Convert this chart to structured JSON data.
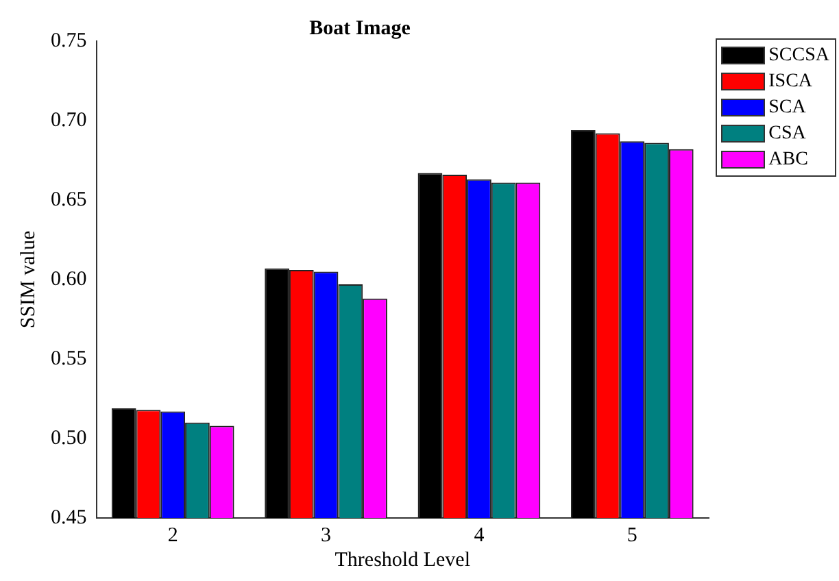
{
  "chart_data": {
    "type": "bar",
    "title": "Boat Image",
    "xlabel": "Threshold Level",
    "ylabel": "SSIM value",
    "categories": [
      "2",
      "3",
      "4",
      "5"
    ],
    "series": [
      {
        "name": "SCCSA",
        "color": "#000000",
        "values": [
          0.519,
          0.607,
          0.667,
          0.694
        ]
      },
      {
        "name": "ISCA",
        "color": "#ff0000",
        "values": [
          0.518,
          0.606,
          0.666,
          0.692
        ]
      },
      {
        "name": "SCA",
        "color": "#0000ff",
        "values": [
          0.517,
          0.605,
          0.663,
          0.687
        ]
      },
      {
        "name": "CSA",
        "color": "#008080",
        "values": [
          0.51,
          0.597,
          0.661,
          0.686
        ]
      },
      {
        "name": "ABC",
        "color": "#ff00ff",
        "values": [
          0.508,
          0.588,
          0.661,
          0.682
        ]
      }
    ],
    "ylim": [
      0.45,
      0.75
    ],
    "yticks": [
      {
        "value": 0.45,
        "label": "0.45"
      },
      {
        "value": 0.5,
        "label": "0.50"
      },
      {
        "value": 0.55,
        "label": "0.55"
      },
      {
        "value": 0.6,
        "label": "0.60"
      },
      {
        "value": 0.65,
        "label": "0.65"
      },
      {
        "value": 0.7,
        "label": "0.70"
      },
      {
        "value": 0.75,
        "label": "0.75"
      }
    ],
    "grid": false,
    "legend": "top right"
  }
}
